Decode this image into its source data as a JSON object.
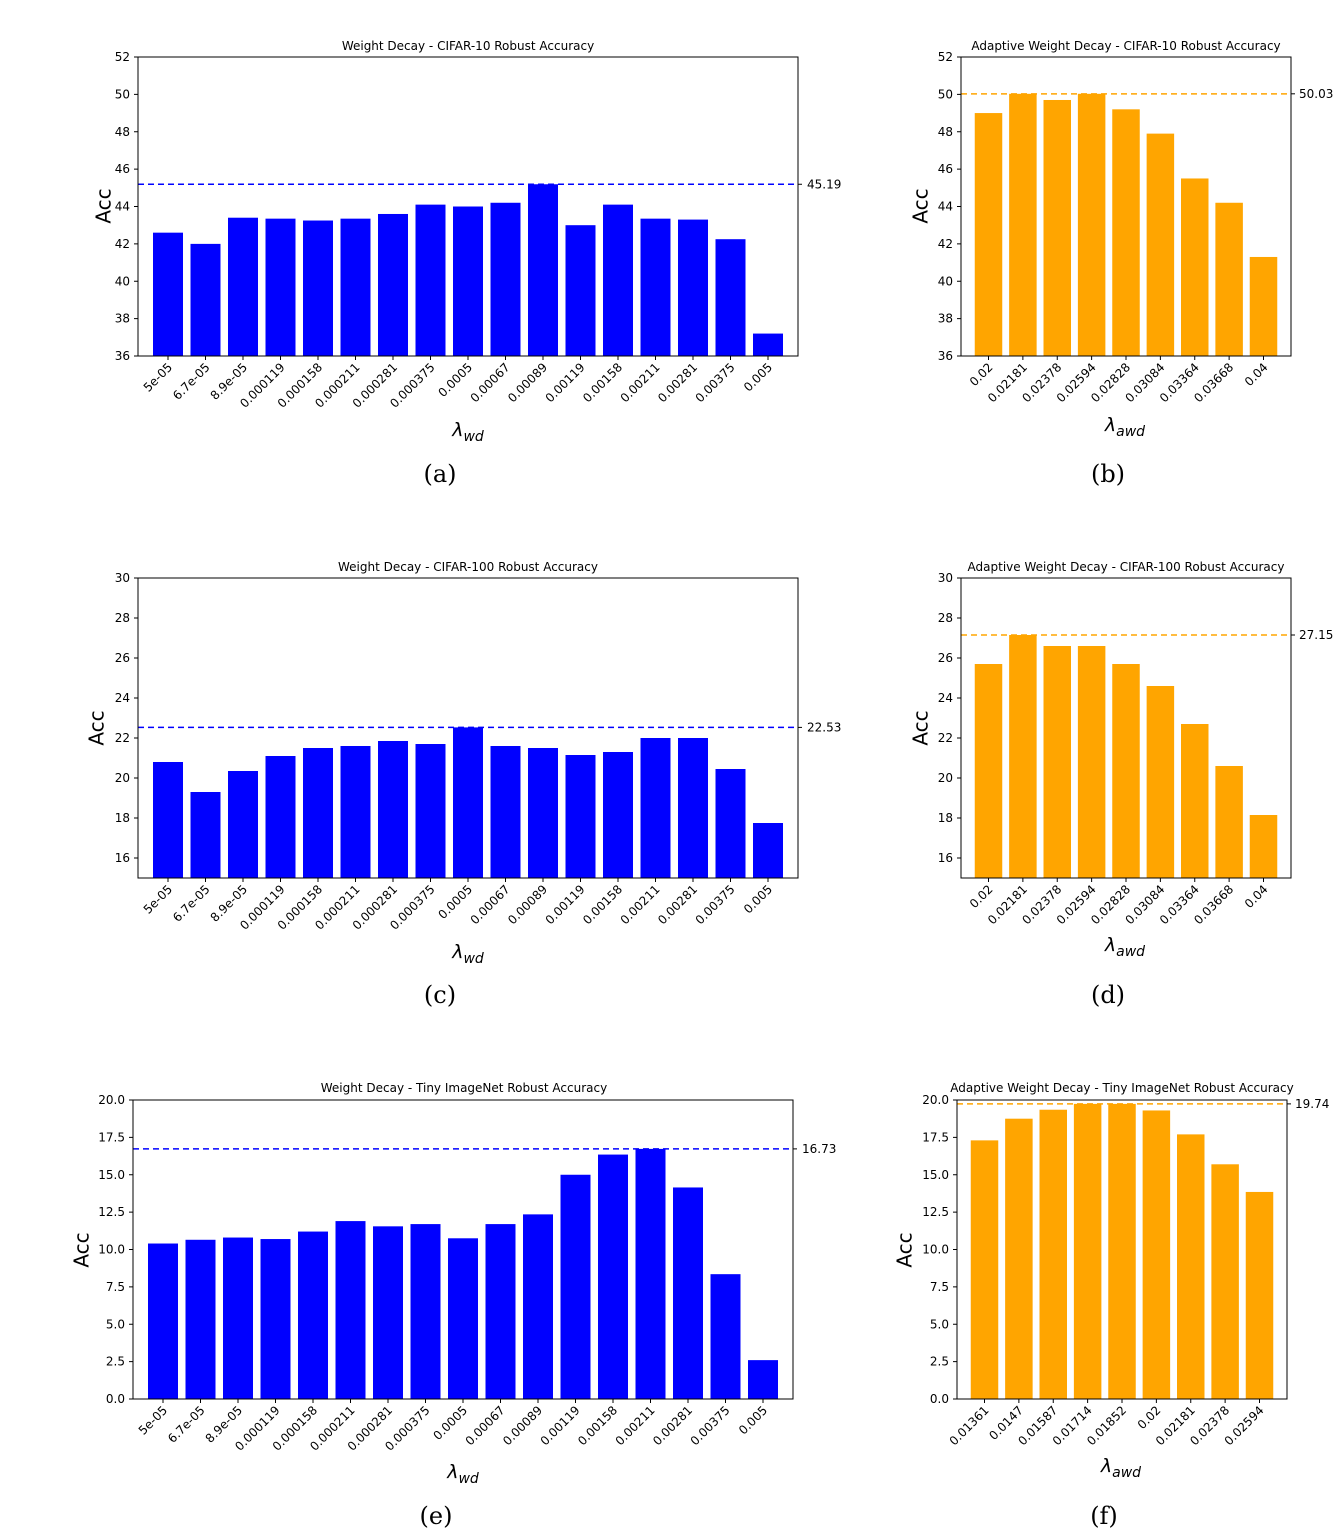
{
  "chart_data": [
    {
      "panel": "(a)",
      "type": "bar",
      "title": "Weight Decay - CIFAR-10 Robust Accuracy",
      "ylabel": "Acc",
      "xlabel_base": "λ",
      "xlabel_sub": "wd",
      "color": "#0000ff",
      "ylim": [
        36,
        52
      ],
      "yticks": [
        "36",
        "38",
        "40",
        "42",
        "44",
        "46",
        "48",
        "50",
        "52"
      ],
      "ytick_values": [
        36,
        38,
        40,
        42,
        44,
        46,
        48,
        50,
        52
      ],
      "categories": [
        "5e-05",
        "6.7e-05",
        "8.9e-05",
        "0.000119",
        "0.000158",
        "0.000211",
        "0.000281",
        "0.000375",
        "0.0005",
        "0.00067",
        "0.00089",
        "0.00119",
        "0.00158",
        "0.00211",
        "0.00281",
        "0.00375",
        "0.005"
      ],
      "values": [
        42.6,
        42.0,
        43.4,
        43.35,
        43.25,
        43.35,
        43.6,
        44.1,
        44.0,
        44.2,
        45.19,
        43.0,
        44.1,
        43.35,
        43.3,
        42.25,
        37.2
      ],
      "best_value": 45.19,
      "best_label": "45.19"
    },
    {
      "panel": "(b)",
      "type": "bar",
      "title": "Adaptive Weight Decay - CIFAR-10 Robust Accuracy",
      "ylabel": "Acc",
      "xlabel_base": "λ",
      "xlabel_sub": "awd",
      "color": "#ffa500",
      "ylim": [
        36,
        52
      ],
      "yticks": [
        "36",
        "38",
        "40",
        "42",
        "44",
        "46",
        "48",
        "50",
        "52"
      ],
      "ytick_values": [
        36,
        38,
        40,
        42,
        44,
        46,
        48,
        50,
        52
      ],
      "categories": [
        "0.02",
        "0.02181",
        "0.02378",
        "0.02594",
        "0.02828",
        "0.03084",
        "0.03364",
        "0.03668",
        "0.04"
      ],
      "values": [
        49.0,
        50.03,
        49.7,
        50.03,
        49.2,
        47.9,
        45.5,
        44.2,
        41.3
      ],
      "best_value": 50.03,
      "best_label": "50.03"
    },
    {
      "panel": "(c)",
      "type": "bar",
      "title": "Weight Decay - CIFAR-100 Robust Accuracy",
      "ylabel": "Acc",
      "xlabel_base": "λ",
      "xlabel_sub": "wd",
      "color": "#0000ff",
      "ylim": [
        15,
        30
      ],
      "yticks": [
        "16",
        "18",
        "20",
        "22",
        "24",
        "26",
        "28",
        "30"
      ],
      "ytick_values": [
        16,
        18,
        20,
        22,
        24,
        26,
        28,
        30
      ],
      "categories": [
        "5e-05",
        "6.7e-05",
        "8.9e-05",
        "0.000119",
        "0.000158",
        "0.000211",
        "0.000281",
        "0.000375",
        "0.0005",
        "0.00067",
        "0.00089",
        "0.00119",
        "0.00158",
        "0.00211",
        "0.00281",
        "0.00375",
        "0.005"
      ],
      "values": [
        20.8,
        19.3,
        20.35,
        21.1,
        21.5,
        21.6,
        21.85,
        21.7,
        22.53,
        21.6,
        21.5,
        21.15,
        21.3,
        22.0,
        22.0,
        20.45,
        17.75
      ],
      "best_value": 22.53,
      "best_label": "22.53"
    },
    {
      "panel": "(d)",
      "type": "bar",
      "title": "Adaptive Weight Decay - CIFAR-100 Robust Accuracy",
      "ylabel": "Acc",
      "xlabel_base": "λ",
      "xlabel_sub": "awd",
      "color": "#ffa500",
      "ylim": [
        15,
        30
      ],
      "yticks": [
        "16",
        "18",
        "20",
        "22",
        "24",
        "26",
        "28",
        "30"
      ],
      "ytick_values": [
        16,
        18,
        20,
        22,
        24,
        26,
        28,
        30
      ],
      "categories": [
        "0.02",
        "0.02181",
        "0.02378",
        "0.02594",
        "0.02828",
        "0.03084",
        "0.03364",
        "0.03668",
        "0.04"
      ],
      "values": [
        25.7,
        27.15,
        26.6,
        26.6,
        25.7,
        24.6,
        22.7,
        20.6,
        18.15
      ],
      "best_value": 27.15,
      "best_label": "27.15"
    },
    {
      "panel": "(e)",
      "type": "bar",
      "title": "Weight Decay - Tiny ImageNet Robust Accuracy",
      "ylabel": "Acc",
      "xlabel_base": "λ",
      "xlabel_sub": "wd",
      "color": "#0000ff",
      "ylim": [
        0,
        20
      ],
      "yticks": [
        "0.0",
        "2.5",
        "5.0",
        "7.5",
        "10.0",
        "12.5",
        "15.0",
        "17.5",
        "20.0"
      ],
      "ytick_values": [
        0,
        2.5,
        5,
        7.5,
        10,
        12.5,
        15,
        17.5,
        20
      ],
      "categories": [
        "5e-05",
        "6.7e-05",
        "8.9e-05",
        "0.000119",
        "0.000158",
        "0.000211",
        "0.000281",
        "0.000375",
        "0.0005",
        "0.00067",
        "0.00089",
        "0.00119",
        "0.00158",
        "0.00211",
        "0.00281",
        "0.00375",
        "0.005"
      ],
      "values": [
        10.4,
        10.65,
        10.8,
        10.7,
        11.2,
        11.9,
        11.55,
        11.7,
        10.75,
        11.7,
        12.35,
        15.0,
        16.35,
        16.73,
        14.15,
        8.35,
        2.6
      ],
      "best_value": 16.73,
      "best_label": "16.73"
    },
    {
      "panel": "(f)",
      "type": "bar",
      "title": "Adaptive Weight Decay - Tiny ImageNet Robust Accuracy",
      "ylabel": "Acc",
      "xlabel_base": "λ",
      "xlabel_sub": "awd",
      "color": "#ffa500",
      "ylim": [
        0,
        20
      ],
      "yticks": [
        "0.0",
        "2.5",
        "5.0",
        "7.5",
        "10.0",
        "12.5",
        "15.0",
        "17.5",
        "20.0"
      ],
      "ytick_values": [
        0,
        2.5,
        5,
        7.5,
        10,
        12.5,
        15,
        17.5,
        20
      ],
      "categories": [
        "0.01361",
        "0.0147",
        "0.01587",
        "0.01714",
        "0.01852",
        "0.02",
        "0.02181",
        "0.02378",
        "0.02594"
      ],
      "values": [
        17.3,
        18.75,
        19.35,
        19.74,
        19.74,
        19.3,
        17.7,
        15.7,
        13.85
      ],
      "best_value": 19.74,
      "best_label": "19.74"
    }
  ]
}
